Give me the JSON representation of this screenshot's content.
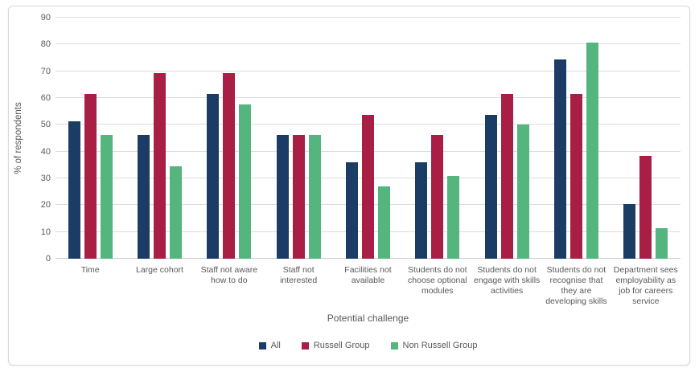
{
  "chart_data": {
    "type": "bar",
    "title": "",
    "xlabel": "Potential challenge",
    "ylabel": "% of respondents",
    "ylim": [
      0,
      90
    ],
    "yticks": [
      0,
      10,
      20,
      30,
      40,
      50,
      60,
      70,
      80,
      90
    ],
    "grid": true,
    "legend_position": "bottom",
    "categories": [
      "Time",
      "Large cohort",
      "Staff not aware how to do",
      "Staff not interested",
      "Facilities not available",
      "Students do not choose optional modules",
      "Students do not engage with skills activities",
      "Students do not recognise that they are developing skills",
      "Department sees employability as job for careers service"
    ],
    "series": [
      {
        "name": "All",
        "color": "#1B3C64",
        "values": [
          51.3,
          46.2,
          61.5,
          46.2,
          35.9,
          35.9,
          53.8,
          74.4,
          20.5
        ]
      },
      {
        "name": "Russell Group",
        "color": "#A91E45",
        "values": [
          61.5,
          69.2,
          69.2,
          46.2,
          53.8,
          46.2,
          61.5,
          61.5,
          38.5
        ]
      },
      {
        "name": "Non Russell Group",
        "color": "#55B57F",
        "values": [
          46.2,
          34.6,
          57.7,
          46.2,
          26.9,
          30.8,
          50.0,
          80.8,
          11.5
        ]
      }
    ]
  },
  "colors": {
    "axis_text": "#595959",
    "gridline": "#dcdcdc",
    "frame_border": "#d8d8d8",
    "background": "#ffffff"
  }
}
